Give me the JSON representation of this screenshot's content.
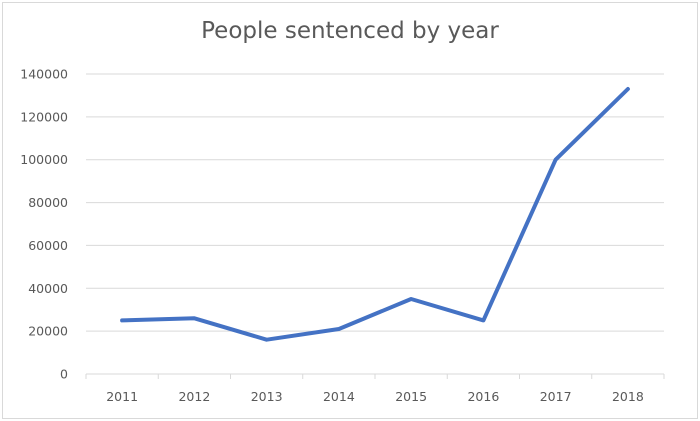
{
  "chart_data": {
    "type": "line",
    "title": "People sentenced by year",
    "xlabel": "",
    "ylabel": "",
    "categories": [
      "2011",
      "2012",
      "2013",
      "2014",
      "2015",
      "2016",
      "2017",
      "2018"
    ],
    "series": [
      {
        "name": "People sentenced",
        "values": [
          25000,
          26000,
          16000,
          21000,
          35000,
          25000,
          100000,
          133000
        ],
        "color": "#4472c4"
      }
    ],
    "ylim": [
      0,
      140000
    ],
    "yticks": [
      "0",
      "20000",
      "40000",
      "60000",
      "80000",
      "100000",
      "120000",
      "140000"
    ],
    "grid": true,
    "legend": "none"
  }
}
